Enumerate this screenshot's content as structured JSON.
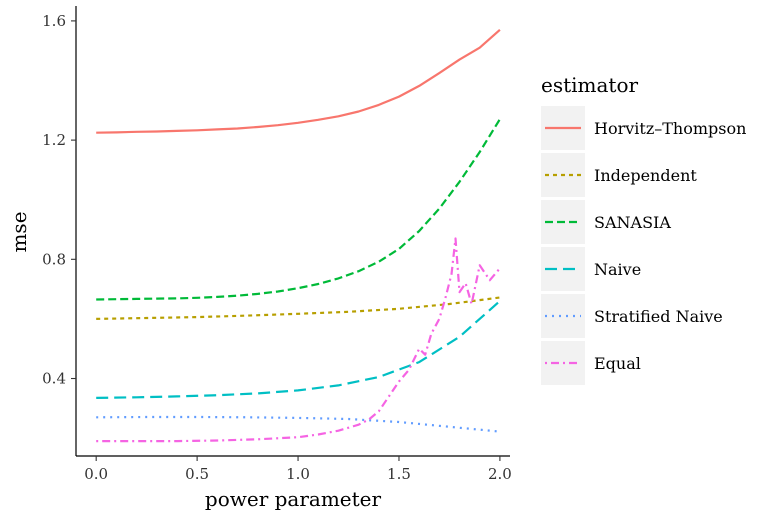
{
  "chart_data": {
    "type": "line",
    "xlabel": "power parameter",
    "ylabel": "mse",
    "xlim": [
      -0.1,
      2.05
    ],
    "ylim": [
      0.14,
      1.65
    ],
    "x_ticks": [
      0.0,
      0.5,
      1.0,
      1.5,
      2.0
    ],
    "x_tick_labels": [
      "0.0",
      "0.5",
      "1.0",
      "1.5",
      "2.0"
    ],
    "y_ticks": [
      0.4,
      0.8,
      1.2,
      1.6
    ],
    "y_tick_labels": [
      "0.4",
      "0.8",
      "1.2",
      "1.6"
    ],
    "grid": false,
    "legend_title": "estimator",
    "legend_position": "right",
    "series": [
      {
        "name": "Horvitz–Thompson",
        "color": "#F8766D",
        "dash": "solid",
        "x": [
          0,
          0.1,
          0.2,
          0.3,
          0.4,
          0.5,
          0.6,
          0.7,
          0.8,
          0.9,
          1.0,
          1.1,
          1.2,
          1.3,
          1.4,
          1.5,
          1.6,
          1.7,
          1.8,
          1.9,
          2.0
        ],
        "values": [
          1.225,
          1.226,
          1.228,
          1.229,
          1.231,
          1.233,
          1.236,
          1.239,
          1.244,
          1.25,
          1.258,
          1.268,
          1.28,
          1.296,
          1.318,
          1.346,
          1.382,
          1.425,
          1.47,
          1.51,
          1.57
        ]
      },
      {
        "name": "Independent",
        "color": "#B79F00",
        "dash": "dotted",
        "x": [
          0,
          0.25,
          0.5,
          0.75,
          1.0,
          1.25,
          1.5,
          1.75,
          2.0
        ],
        "values": [
          0.6,
          0.603,
          0.606,
          0.611,
          0.617,
          0.624,
          0.634,
          0.65,
          0.672
        ]
      },
      {
        "name": "SANASIA",
        "color": "#00BA38",
        "dash": "dashed",
        "x": [
          0,
          0.1,
          0.2,
          0.3,
          0.4,
          0.5,
          0.6,
          0.7,
          0.8,
          0.9,
          1.0,
          1.1,
          1.2,
          1.3,
          1.4,
          1.5,
          1.6,
          1.7,
          1.8,
          1.9,
          2.0
        ],
        "values": [
          0.665,
          0.666,
          0.667,
          0.668,
          0.669,
          0.671,
          0.674,
          0.678,
          0.684,
          0.692,
          0.703,
          0.717,
          0.736,
          0.76,
          0.792,
          0.835,
          0.895,
          0.97,
          1.06,
          1.16,
          1.27
        ]
      },
      {
        "name": "Naive",
        "color": "#00BFC4",
        "dash": "longdash",
        "x": [
          0,
          0.2,
          0.4,
          0.6,
          0.8,
          1.0,
          1.2,
          1.4,
          1.6,
          1.8,
          2.0
        ],
        "values": [
          0.335,
          0.337,
          0.34,
          0.344,
          0.35,
          0.36,
          0.377,
          0.405,
          0.455,
          0.54,
          0.66
        ]
      },
      {
        "name": "Stratified Naive",
        "color": "#619CFF",
        "dash": "dotted-fine",
        "x": [
          0,
          0.25,
          0.5,
          0.75,
          1.0,
          1.25,
          1.5,
          1.75,
          2.0
        ],
        "values": [
          0.27,
          0.271,
          0.271,
          0.27,
          0.268,
          0.264,
          0.254,
          0.238,
          0.222
        ]
      },
      {
        "name": "Equal",
        "color": "#F564E3",
        "dash": "dotdash",
        "x": [
          0,
          0.2,
          0.4,
          0.6,
          0.8,
          1.0,
          1.1,
          1.2,
          1.3,
          1.35,
          1.4,
          1.45,
          1.5,
          1.55,
          1.6,
          1.63,
          1.66,
          1.7,
          1.73,
          1.76,
          1.78,
          1.8,
          1.83,
          1.86,
          1.9,
          1.95,
          2.0
        ],
        "values": [
          0.19,
          0.19,
          0.19,
          0.192,
          0.196,
          0.203,
          0.212,
          0.225,
          0.245,
          0.262,
          0.29,
          0.34,
          0.39,
          0.43,
          0.5,
          0.48,
          0.55,
          0.6,
          0.67,
          0.75,
          0.87,
          0.69,
          0.72,
          0.65,
          0.78,
          0.73,
          0.77
        ]
      }
    ]
  }
}
